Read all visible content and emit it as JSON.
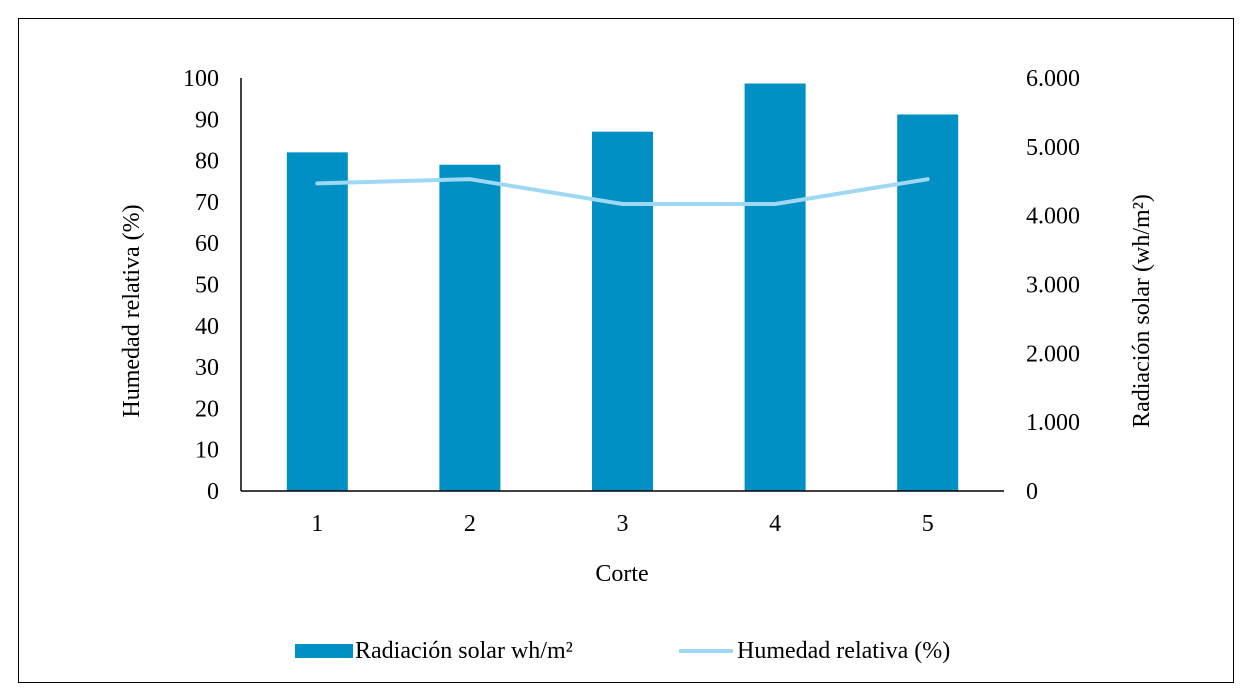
{
  "chart_data": {
    "type": "bar",
    "categories": [
      "1",
      "2",
      "3",
      "4",
      "5"
    ],
    "xlabel": "Corte",
    "ylabel_left": "Humedad relativa (%)",
    "ylabel_right": "Radiación solar (wh/m²)",
    "ylim_left": [
      0,
      100
    ],
    "ylim_right": [
      0,
      6000
    ],
    "yticks_left": [
      "0",
      "10",
      "20",
      "30",
      "40",
      "50",
      "60",
      "70",
      "80",
      "90",
      "100"
    ],
    "yticks_right": [
      "0",
      "1.000",
      "2.000",
      "3.000",
      "4.000",
      "5.000",
      "6.000"
    ],
    "grid": false,
    "legend_position": "bottom",
    "series": [
      {
        "name": "Radiación solar wh/m²",
        "kind": "bar",
        "axis": "right",
        "color": "#0090C4",
        "values": [
          4920,
          4740,
          5220,
          5920,
          5470
        ]
      },
      {
        "name": "Humedad relativa (%)",
        "kind": "line",
        "axis": "left",
        "color": "#9ED8F2",
        "values": [
          74.5,
          75.5,
          69.5,
          69.5,
          75.5
        ]
      }
    ]
  }
}
